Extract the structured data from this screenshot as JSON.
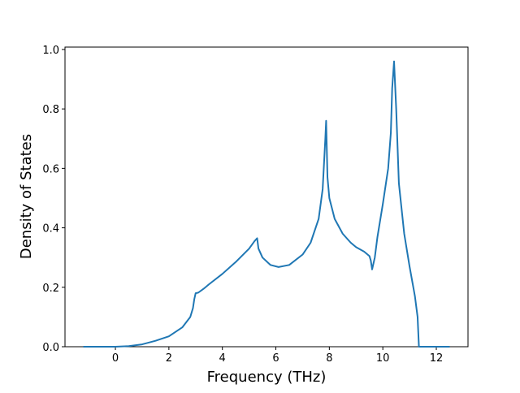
{
  "chart_data": {
    "type": "line",
    "xlabel": "Frequency (THz)",
    "ylabel": "Density of States",
    "x": [
      -1.2,
      0,
      0.5,
      1,
      1.5,
      2,
      2.5,
      2.8,
      2.9,
      2.95,
      3.0,
      3.1,
      3.3,
      3.5,
      4,
      4.5,
      5,
      5.2,
      5.3,
      5.35,
      5.5,
      5.8,
      6.1,
      6.5,
      7,
      7.3,
      7.6,
      7.75,
      7.85,
      7.88,
      7.93,
      8.0,
      8.2,
      8.5,
      8.8,
      9.0,
      9.3,
      9.5,
      9.55,
      9.6,
      9.7,
      9.8,
      10.0,
      10.2,
      10.3,
      10.35,
      10.42,
      10.5,
      10.6,
      10.8,
      11.0,
      11.2,
      11.3,
      11.35,
      11.5,
      12.5
    ],
    "series": [
      {
        "color": "#1f77b4",
        "values": [
          0,
          0,
          0.002,
          0.008,
          0.02,
          0.035,
          0.065,
          0.1,
          0.13,
          0.16,
          0.18,
          0.182,
          0.195,
          0.21,
          0.245,
          0.285,
          0.33,
          0.355,
          0.365,
          0.33,
          0.3,
          0.275,
          0.268,
          0.275,
          0.31,
          0.35,
          0.43,
          0.53,
          0.7,
          0.76,
          0.57,
          0.5,
          0.43,
          0.38,
          0.35,
          0.335,
          0.32,
          0.305,
          0.29,
          0.26,
          0.3,
          0.37,
          0.48,
          0.6,
          0.72,
          0.87,
          0.96,
          0.8,
          0.55,
          0.38,
          0.27,
          0.17,
          0.1,
          0,
          0,
          0
        ]
      }
    ],
    "xlim": [
      -1.885,
      13.185
    ],
    "ylim": [
      0,
      1.008
    ],
    "xticks": [
      0,
      2,
      4,
      6,
      8,
      10,
      12
    ],
    "yticks": [
      {
        "value": 0,
        "label": "0.0"
      },
      0.2,
      0.4,
      0.6,
      0.8,
      {
        "value": 1,
        "label": "1.0"
      }
    ]
  }
}
